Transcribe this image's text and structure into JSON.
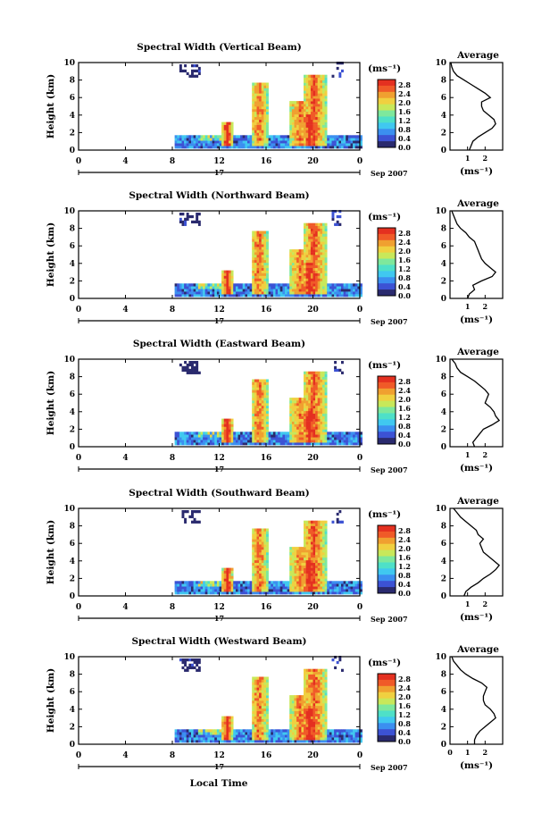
{
  "chart_data": {
    "type": "heatmap",
    "panels": [
      {
        "title": "Spectral Width (Vertical Beam)",
        "average_profile": [
          1.1,
          1.2,
          1.3,
          1.6,
          2.0,
          2.4,
          2.6,
          2.5,
          2.2,
          1.9,
          1.8,
          1.8,
          2.3,
          2.0,
          1.6,
          1.2,
          0.8,
          0.4,
          0.2,
          0.1,
          0.05
        ]
      },
      {
        "title": "Spectral Width (Northward Beam)",
        "average_profile": [
          1.0,
          1.1,
          1.4,
          1.3,
          1.8,
          2.4,
          2.6,
          2.3,
          2.0,
          1.8,
          1.7,
          1.6,
          1.5,
          1.4,
          1.1,
          0.9,
          0.6,
          0.4,
          0.3,
          0.2,
          0.1
        ]
      },
      {
        "title": "Spectral Width (Eastward Beam)",
        "average_profile": [
          1.4,
          1.3,
          1.5,
          1.7,
          1.9,
          2.4,
          2.8,
          2.6,
          2.5,
          2.3,
          2.0,
          2.1,
          2.2,
          2.0,
          1.7,
          1.4,
          1.0,
          0.6,
          0.4,
          0.3,
          0.1
        ]
      },
      {
        "title": "Spectral Width (Southward Beam)",
        "average_profile": [
          0.8,
          0.9,
          1.2,
          1.6,
          1.9,
          2.3,
          2.6,
          2.8,
          2.5,
          2.2,
          1.9,
          1.8,
          1.7,
          1.9,
          1.6,
          1.5,
          1.2,
          0.9,
          0.6,
          0.4,
          0.2
        ]
      },
      {
        "title": "Spectral Width (Westward Beam)",
        "average_profile": [
          1.4,
          1.4,
          1.5,
          1.7,
          2.0,
          2.3,
          2.6,
          2.5,
          2.3,
          2.0,
          1.9,
          1.9,
          2.0,
          2.1,
          1.8,
          1.3,
          0.9,
          0.6,
          0.4,
          0.2,
          0.1
        ]
      }
    ],
    "ylabel": "Height (km)",
    "ylim": [
      0,
      10
    ],
    "yticks": [
      0,
      2,
      4,
      6,
      8,
      10
    ],
    "xlabel": "Local Time",
    "xlim": [
      0,
      24
    ],
    "xticks": [
      "0",
      "4",
      "8",
      "12",
      "16",
      "20",
      "0"
    ],
    "day_label": "17",
    "date_label": "Sep 2007",
    "colorbar": {
      "unit": "(ms⁻¹)",
      "ticks": [
        "2.8",
        "2.4",
        "2.0",
        "1.6",
        "1.2",
        "0.8",
        "0.4",
        "0.0"
      ],
      "range": [
        0,
        3.2
      ]
    },
    "average": {
      "title": "Average",
      "xlabel": "(ms⁻¹)",
      "xticks": [
        1,
        2
      ],
      "xlim": [
        0,
        3
      ]
    },
    "last_panel_xticks": [
      "0",
      "1",
      "2"
    ],
    "grid": false
  },
  "colors": {
    "scale": [
      "#2a2a6e",
      "#3c52d4",
      "#3b8ff0",
      "#40c8f0",
      "#4ee0c8",
      "#7ee89c",
      "#c8e85a",
      "#f0d040",
      "#f0a030",
      "#f05a28",
      "#e43020"
    ]
  }
}
